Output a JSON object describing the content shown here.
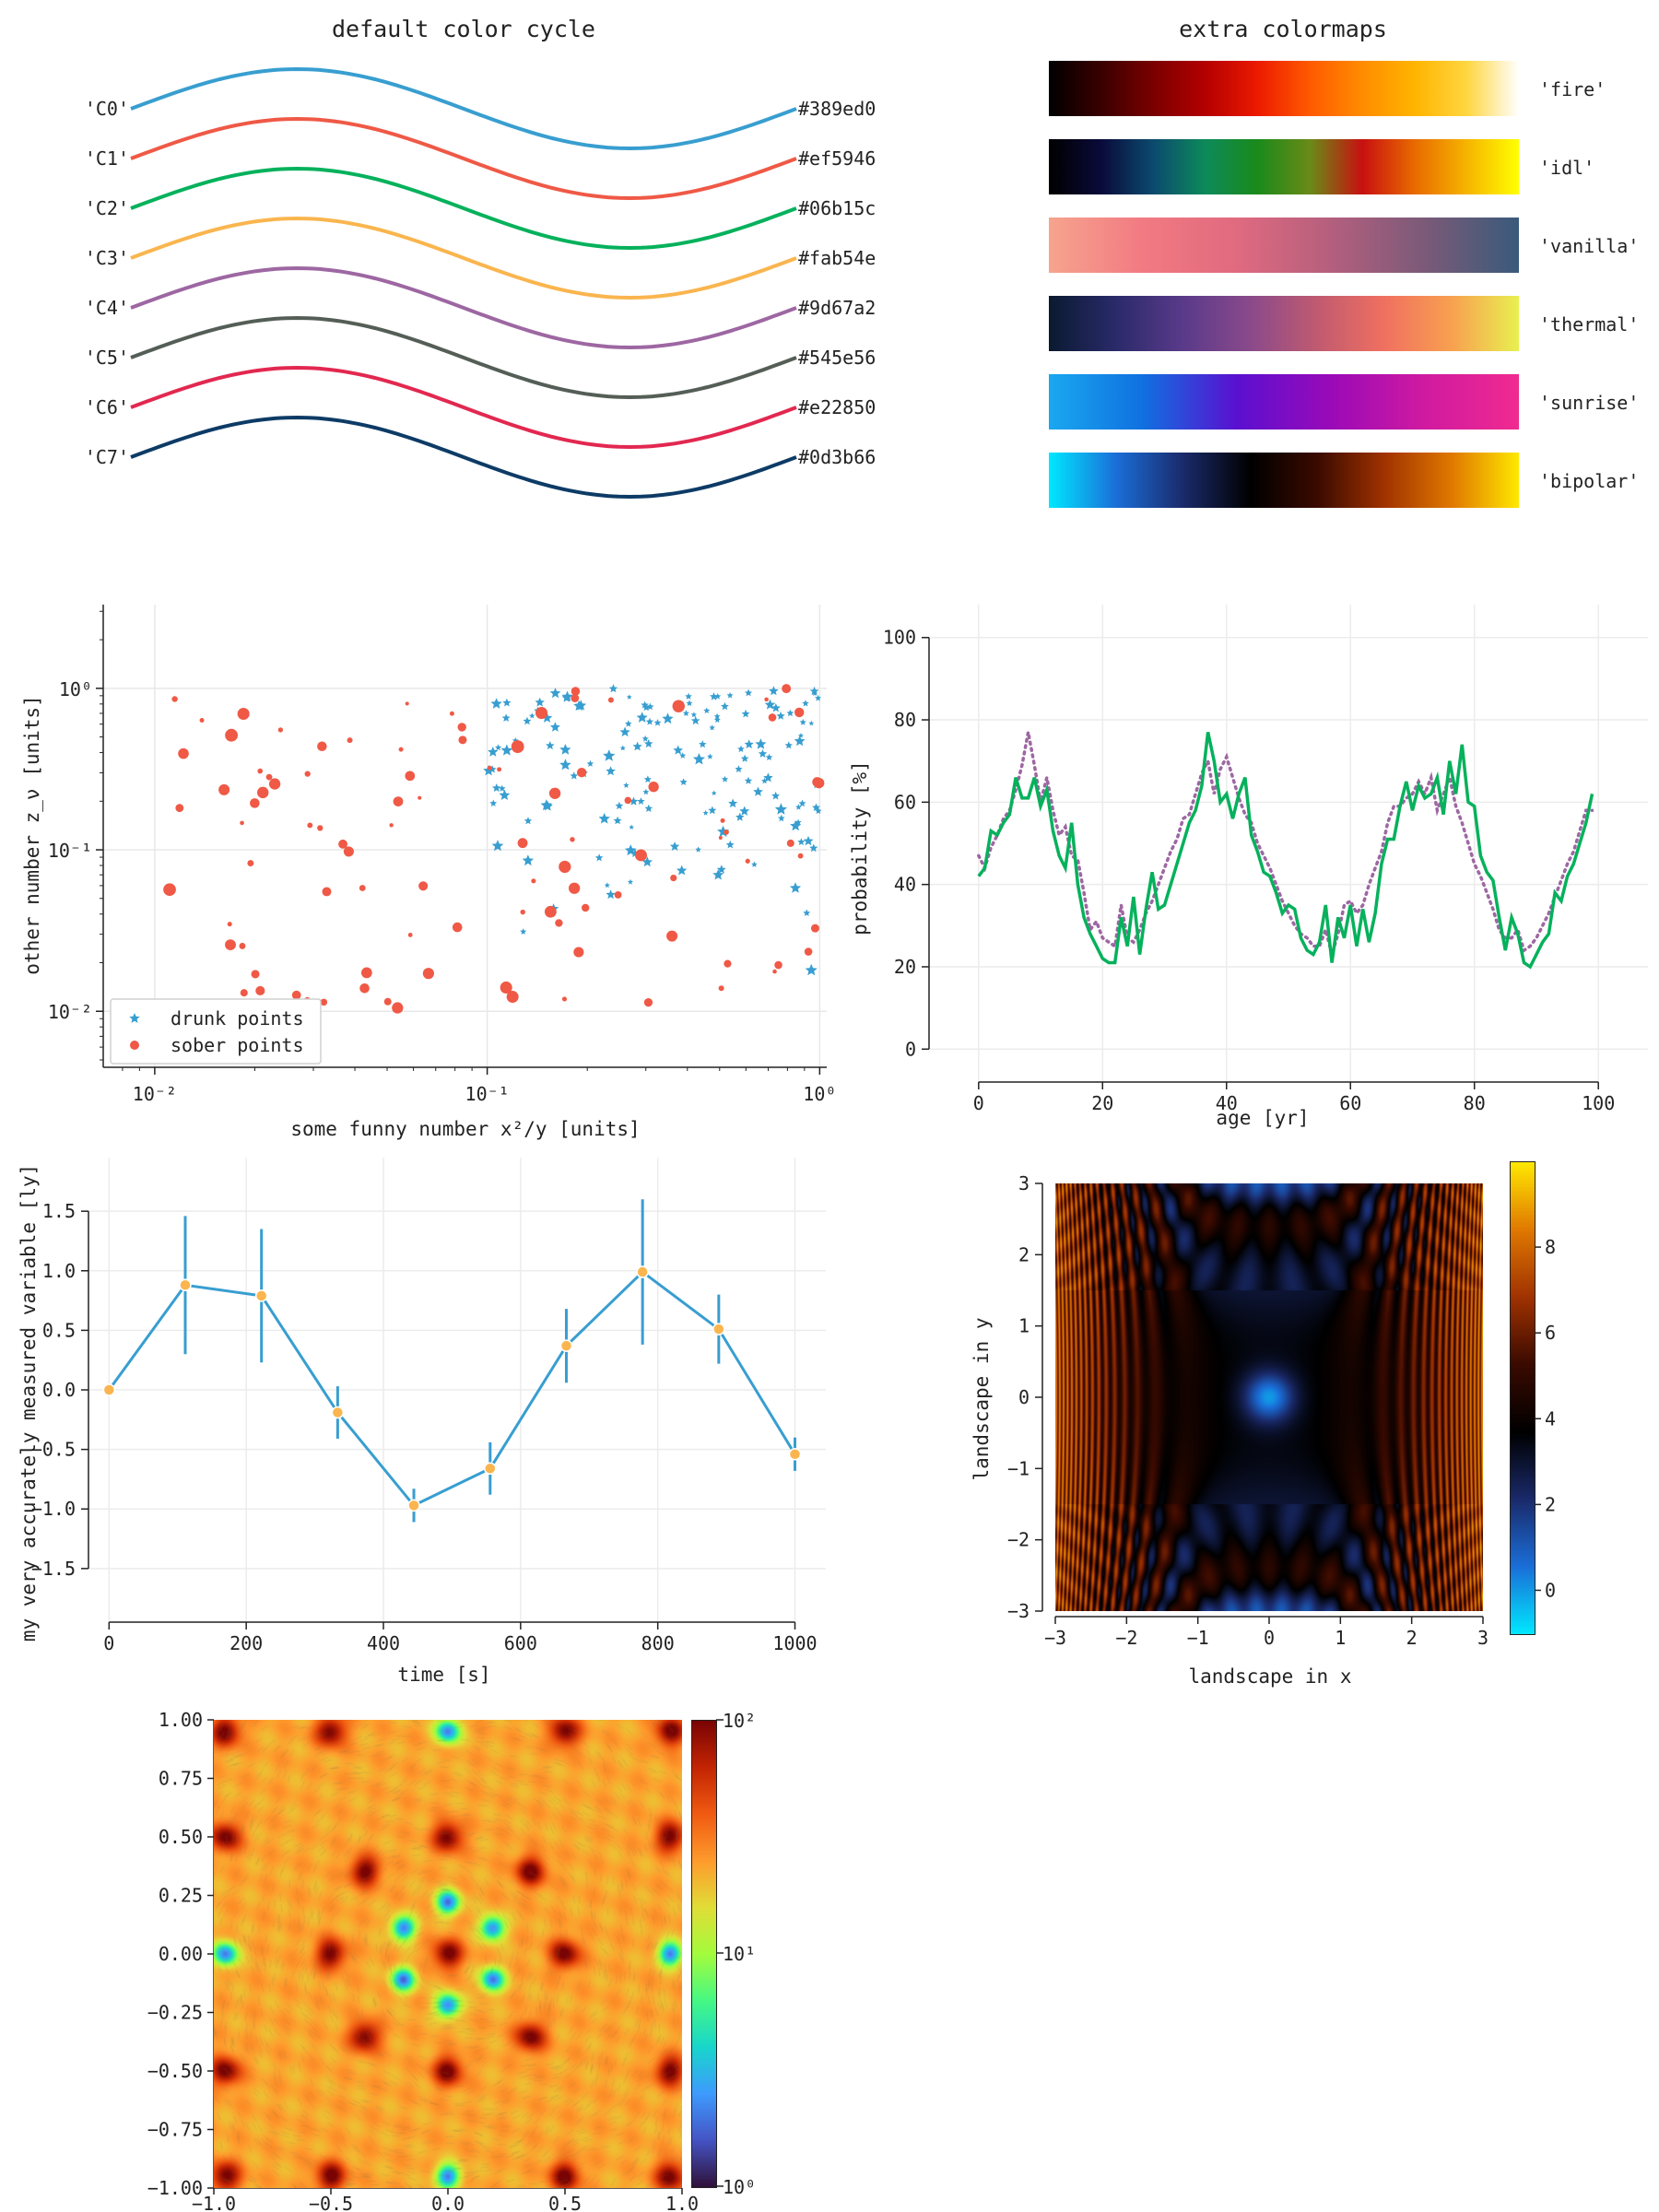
{
  "chart_data": [
    {
      "type": "line",
      "title": "default color cycle",
      "series": [
        {
          "name": "'C0'",
          "hex": "#389ed0",
          "color": "#389ed0"
        },
        {
          "name": "'C1'",
          "hex": "#ef5946",
          "color": "#ef5946"
        },
        {
          "name": "'C2'",
          "hex": "#06b15c",
          "color": "#06b15c"
        },
        {
          "name": "'C3'",
          "hex": "#fab54e",
          "color": "#fab54e"
        },
        {
          "name": "'C4'",
          "hex": "#9d67a2",
          "color": "#9d67a2"
        },
        {
          "name": "'C5'",
          "hex": "#545e56",
          "color": "#545e56"
        },
        {
          "name": "'C6'",
          "hex": "#e22850",
          "color": "#e22850"
        },
        {
          "name": "'C7'",
          "hex": "#0d3b66",
          "color": "#0d3b66"
        }
      ]
    },
    {
      "type": "colorbar",
      "title": "extra colormaps",
      "colormaps": [
        {
          "name": "'fire'",
          "colors": [
            "#000000",
            "#3a0000",
            "#7a0000",
            "#b40000",
            "#ec1a00",
            "#ff5a00",
            "#ff8c00",
            "#ffb400",
            "#ffd640",
            "#ffffff"
          ]
        },
        {
          "name": "'idl'",
          "colors": [
            "#000000",
            "#0a0a3a",
            "#0b4a6e",
            "#0d8a5a",
            "#1a8a1a",
            "#6a8a18",
            "#c81010",
            "#e86a00",
            "#f6b400",
            "#ffff00"
          ]
        },
        {
          "name": "'vanilla'",
          "colors": [
            "#f6a48e",
            "#f27a82",
            "#e06a7f",
            "#b45f7e",
            "#7a5a78",
            "#3a5a7a"
          ]
        },
        {
          "name": "'thermal'",
          "colors": [
            "#0a1a30",
            "#2a2a6a",
            "#5a3a8a",
            "#8a4a8a",
            "#c05a70",
            "#f07060",
            "#f8a050",
            "#e8f050"
          ]
        },
        {
          "name": "'sunrise'",
          "colors": [
            "#1aa8f0",
            "#1070e0",
            "#5a10d0",
            "#9a0ab8",
            "#d01aa0",
            "#f02a90"
          ]
        },
        {
          "name": "'bipolar'",
          "colors": [
            "#00e8ff",
            "#1a6ed8",
            "#1a2a6a",
            "#000000",
            "#3a0a00",
            "#a03200",
            "#e07800",
            "#ffe800"
          ]
        }
      ]
    },
    {
      "type": "scatter",
      "xlabel": "some funny number x²/y [units]",
      "ylabel": "other number z_ν [units]",
      "xscale": "log",
      "yscale": "log",
      "xlim": [
        0.007,
        1.05
      ],
      "ylim": [
        0.0045,
        3.3
      ],
      "xticks": [
        "10⁻²",
        "10⁻¹",
        "10⁰"
      ],
      "yticks": [
        "10⁻²",
        "10⁻¹",
        "10⁰"
      ],
      "legend": "bottom-left",
      "series": [
        {
          "name": "drunk points",
          "marker": "star",
          "color": "#389ed0",
          "count": 150
        },
        {
          "name": "sober points",
          "marker": "circle",
          "color": "#ef5946",
          "count": 100
        }
      ]
    },
    {
      "type": "line",
      "xlabel": "age [yr]",
      "ylabel": "probability [%]",
      "xlim": [
        -8,
        108
      ],
      "ylim": [
        -8,
        108
      ],
      "xticks": [
        "0",
        "20",
        "40",
        "60",
        "80",
        "100"
      ],
      "yticks": [
        "0",
        "20",
        "40",
        "60",
        "80",
        "100"
      ],
      "series": [
        {
          "style": "solid",
          "color": "#06b15c",
          "x": [
            0,
            1,
            2,
            3,
            4,
            5,
            6,
            7,
            8,
            9,
            10,
            11,
            12,
            13,
            14,
            15,
            16,
            17,
            18,
            19,
            20,
            21,
            22,
            23,
            24,
            25,
            26,
            27,
            28,
            29,
            30,
            31,
            32,
            33,
            34,
            35,
            36,
            37,
            38,
            39,
            40,
            41,
            42,
            43,
            44,
            45,
            46,
            47,
            48,
            49,
            50,
            51,
            52,
            53,
            54,
            55,
            56,
            57,
            58,
            59,
            60,
            61,
            62,
            63,
            64,
            65,
            66,
            67,
            68,
            69,
            70,
            71,
            72,
            73,
            74,
            75,
            76,
            77,
            78,
            79,
            80,
            81,
            82,
            83,
            84,
            85,
            86,
            87,
            88,
            89,
            90,
            91,
            92,
            93,
            94,
            95,
            96,
            97,
            98,
            99
          ],
          "y": [
            42,
            44,
            53,
            52,
            55,
            57,
            66,
            61,
            61,
            66,
            59,
            63,
            53,
            47,
            44,
            55,
            40,
            32,
            28,
            25,
            22,
            21,
            21,
            32,
            25,
            37,
            23,
            34,
            43,
            34,
            35,
            40,
            45,
            50,
            55,
            58,
            64,
            77,
            70,
            60,
            62,
            56,
            62,
            66,
            52,
            48,
            43,
            42,
            38,
            33,
            35,
            34,
            27,
            24,
            23,
            26,
            35,
            21,
            32,
            27,
            35,
            25,
            34,
            26,
            33,
            45,
            51,
            51,
            59,
            65,
            58,
            64,
            61,
            62,
            66,
            57,
            70,
            62,
            74,
            60,
            59,
            47,
            43,
            41,
            32,
            24,
            32,
            28,
            21,
            20,
            23,
            26,
            28,
            38,
            36,
            42,
            45,
            50,
            55,
            62
          ]
        },
        {
          "style": "dotted",
          "color": "#9d67a2",
          "x": [
            0,
            1,
            2,
            3,
            4,
            5,
            6,
            7,
            8,
            9,
            10,
            11,
            12,
            13,
            14,
            15,
            16,
            17,
            18,
            19,
            20,
            21,
            22,
            23,
            24,
            25,
            26,
            27,
            28,
            29,
            30,
            31,
            32,
            33,
            34,
            35,
            36,
            37,
            38,
            39,
            40,
            41,
            42,
            43,
            44,
            45,
            46,
            47,
            48,
            49,
            50,
            51,
            52,
            53,
            54,
            55,
            56,
            57,
            58,
            59,
            60,
            61,
            62,
            63,
            64,
            65,
            66,
            67,
            68,
            69,
            70,
            71,
            72,
            73,
            74,
            75,
            76,
            77,
            78,
            79,
            80,
            81,
            82,
            83,
            84,
            85,
            86,
            87,
            88,
            89,
            90,
            91,
            92,
            93,
            94,
            95,
            96,
            97,
            98,
            99
          ],
          "y": [
            47,
            44,
            49,
            52,
            56,
            58,
            63,
            69,
            77,
            69,
            60,
            66,
            58,
            52,
            54,
            47,
            46,
            38,
            29,
            31,
            27,
            26,
            25,
            35,
            27,
            26,
            29,
            33,
            36,
            40,
            44,
            48,
            51,
            56,
            57,
            62,
            67,
            70,
            62,
            68,
            71,
            66,
            61,
            57,
            55,
            50,
            47,
            44,
            40,
            36,
            33,
            30,
            28,
            27,
            25,
            25,
            29,
            23,
            28,
            35,
            36,
            33,
            35,
            40,
            44,
            48,
            55,
            59,
            59,
            61,
            62,
            65,
            62,
            66,
            58,
            62,
            66,
            59,
            55,
            50,
            45,
            42,
            38,
            34,
            29,
            27,
            27,
            29,
            24,
            25,
            27,
            30,
            33,
            37,
            41,
            45,
            48,
            53,
            58,
            58
          ]
        }
      ]
    },
    {
      "type": "line",
      "xlabel": "time [s]",
      "ylabel": "my very accurately measured variable [ly]",
      "xlim": [
        -30,
        1045
      ],
      "ylim": [
        -1.95,
        1.95
      ],
      "xticks": [
        "0",
        "200",
        "400",
        "600",
        "800",
        "1000"
      ],
      "yticks": [
        "−1.5",
        "−1.0",
        "−0.5",
        "0.0",
        "0.5",
        "1.0",
        "1.5"
      ],
      "series": [
        {
          "color": "#389ed0",
          "marker_color": "#fab54e",
          "x": [
            0,
            111.1,
            222.2,
            333.3,
            444.4,
            555.6,
            666.7,
            777.8,
            888.9,
            1000
          ],
          "y": [
            0.0,
            0.88,
            0.79,
            -0.19,
            -0.97,
            -0.66,
            0.37,
            0.99,
            0.51,
            -0.54
          ],
          "err": [
            0.0,
            0.58,
            0.56,
            0.22,
            0.14,
            0.22,
            0.31,
            0.61,
            0.29,
            0.14
          ]
        }
      ]
    },
    {
      "type": "heatmap",
      "xlabel": "landscape in x",
      "ylabel": "landscape in y",
      "xlim": [
        -3,
        3
      ],
      "ylim": [
        -3,
        3
      ],
      "xticks": [
        "−3",
        "−2",
        "−1",
        "0",
        "1",
        "2",
        "3"
      ],
      "yticks": [
        "−3",
        "−2",
        "−1",
        "0",
        "1",
        "2",
        "3"
      ],
      "colorbar_ticks": [
        "0",
        "2",
        "4",
        "6",
        "8"
      ],
      "colorbar_range": [
        -1,
        10
      ],
      "colormap": "bipolar"
    },
    {
      "type": "heatmap",
      "xlim": [
        -1,
        1
      ],
      "ylim": [
        -1,
        1
      ],
      "xticks": [
        "−1.0",
        "−0.5",
        "0.0",
        "0.5",
        "1.0"
      ],
      "yticks": [
        "−1.00",
        "−0.75",
        "−0.50",
        "−0.25",
        "0.00",
        "0.25",
        "0.50",
        "0.75",
        "1.00"
      ],
      "colorbar_scale": "log",
      "colorbar_ticks": [
        "10⁰",
        "10¹",
        "10²"
      ],
      "colormap": "turbo"
    }
  ]
}
